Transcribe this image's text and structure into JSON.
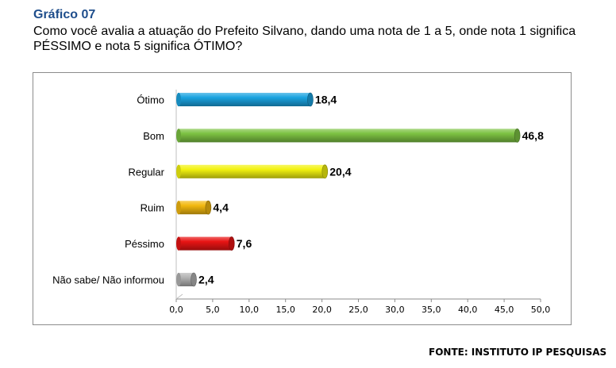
{
  "header": {
    "title": "Gráfico 07",
    "question": "Como você avalia a atuação do Prefeito Silvano, dando uma nota de 1 a 5, onde nota 1 significa PÉSSIMO e nota 5 significa ÓTIMO?"
  },
  "footer": {
    "source": "FONTE: INSTITUTO IP PESQUISAS"
  },
  "chart_data": {
    "type": "bar",
    "orientation": "horizontal",
    "categories": [
      "Ótimo",
      "Bom",
      "Regular",
      "Ruim",
      "Péssimo",
      "Não sabe/ Não informou"
    ],
    "values": [
      18.4,
      46.8,
      20.4,
      4.4,
      7.6,
      2.4
    ],
    "value_labels": [
      "18,4",
      "46,8",
      "20,4",
      "4,4",
      "7,6",
      "2,4"
    ],
    "colors": [
      "#1aa3e0",
      "#7cc242",
      "#f2f20f",
      "#f2b80f",
      "#e81414",
      "#b3b3b3"
    ],
    "xlim": [
      0,
      50
    ],
    "xticks": [
      "0,0",
      "5,0",
      "10,0",
      "15,0",
      "20,0",
      "25,0",
      "30,0",
      "35,0",
      "40,0",
      "45,0",
      "50,0"
    ],
    "grid": false,
    "legend": "none"
  }
}
